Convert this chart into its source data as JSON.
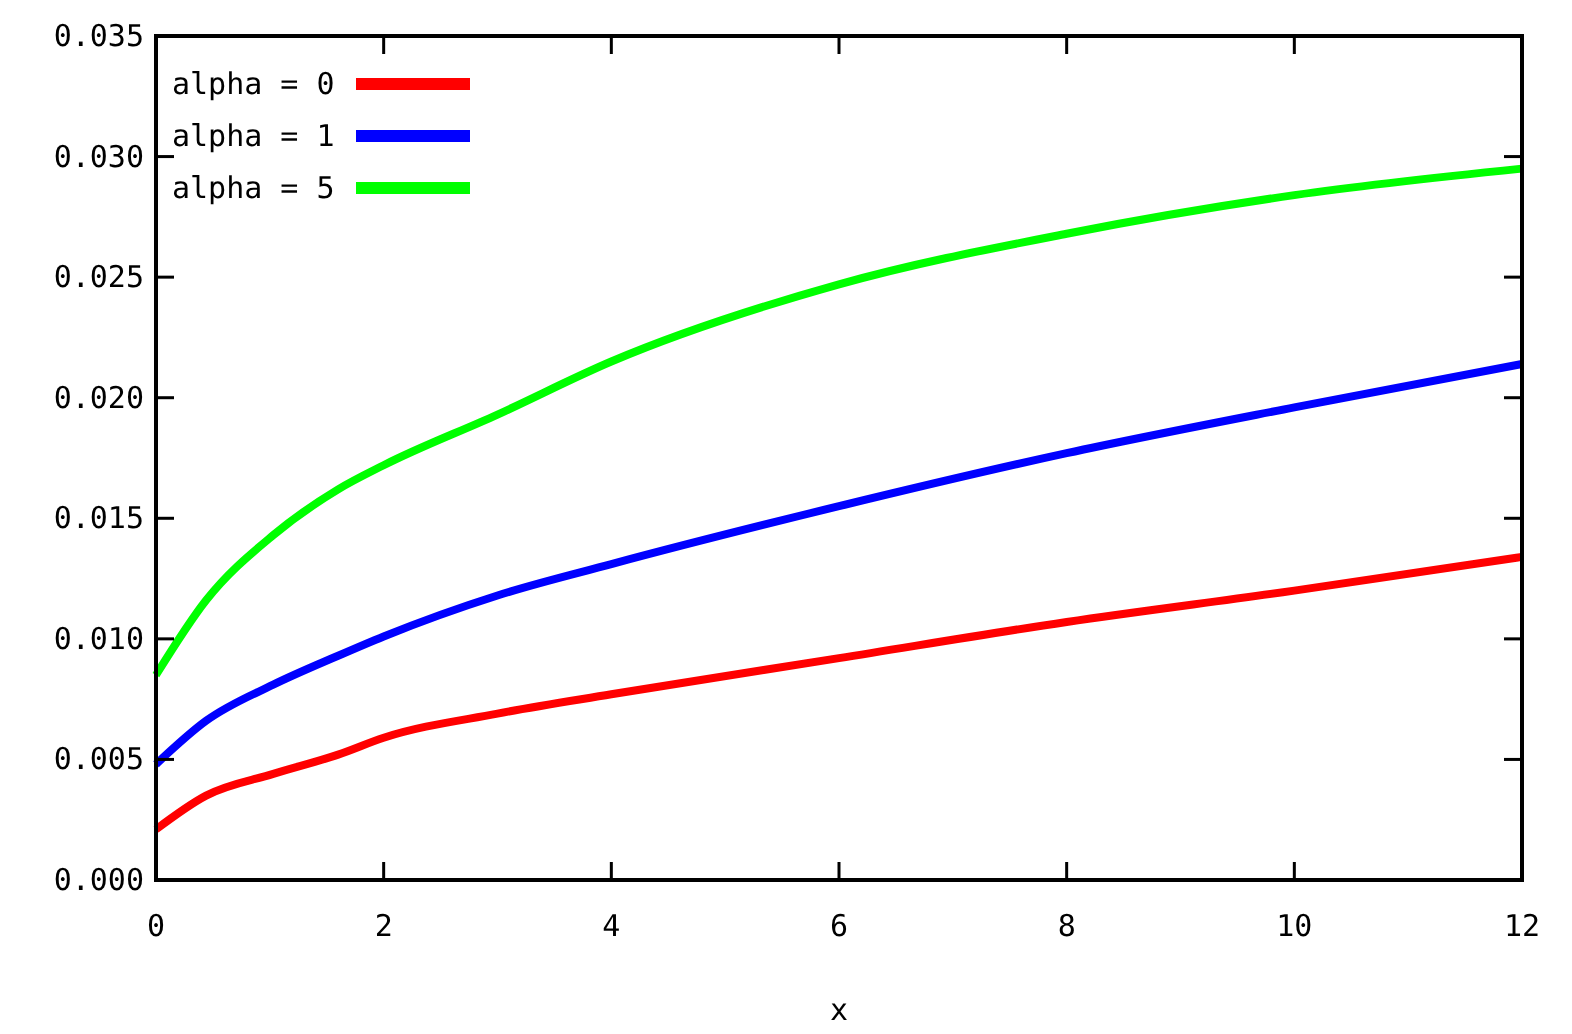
{
  "chart_data": {
    "type": "line",
    "xlabel": "x",
    "x": [
      0,
      0.44,
      1.03,
      1.6,
      2,
      3,
      4,
      6,
      8,
      10,
      12
    ],
    "series": [
      {
        "name": "alpha = 0",
        "color": "#ff0000",
        "values": [
          0.0021,
          0.0035,
          0.0044,
          0.0052,
          0.0059,
          0.0069,
          0.0077,
          0.0092,
          0.0107,
          0.012,
          0.0134
        ]
      },
      {
        "name": "alpha = 1",
        "color": "#0000ff",
        "values": [
          0.0048,
          0.0066,
          0.0081,
          0.0093,
          0.0101,
          0.0118,
          0.0131,
          0.0155,
          0.0177,
          0.0196,
          0.0214
        ]
      },
      {
        "name": "alpha = 5",
        "color": "#00ff00",
        "values": [
          0.0085,
          0.0116,
          0.0143,
          0.0162,
          0.0172,
          0.0193,
          0.0215,
          0.0247,
          0.0268,
          0.0284,
          0.0295
        ]
      }
    ],
    "xlim": [
      0,
      12
    ],
    "xticks": [
      0,
      2,
      4,
      6,
      8,
      10,
      12
    ],
    "ylim": [
      0,
      0.035
    ],
    "yticks": [
      {
        "value": 0,
        "label": "0.000"
      },
      {
        "value": 0.005,
        "label": "0.005"
      },
      {
        "value": 0.01,
        "label": "0.010"
      },
      {
        "value": 0.015,
        "label": "0.015"
      },
      {
        "value": 0.02,
        "label": "0.020"
      },
      {
        "value": 0.025,
        "label": "0.025"
      },
      {
        "value": 0.03,
        "label": "0.030"
      },
      {
        "value": 0.035,
        "label": "0.035"
      }
    ],
    "legend": "top left",
    "grid": false,
    "marker": "none",
    "line_style": "solid"
  }
}
